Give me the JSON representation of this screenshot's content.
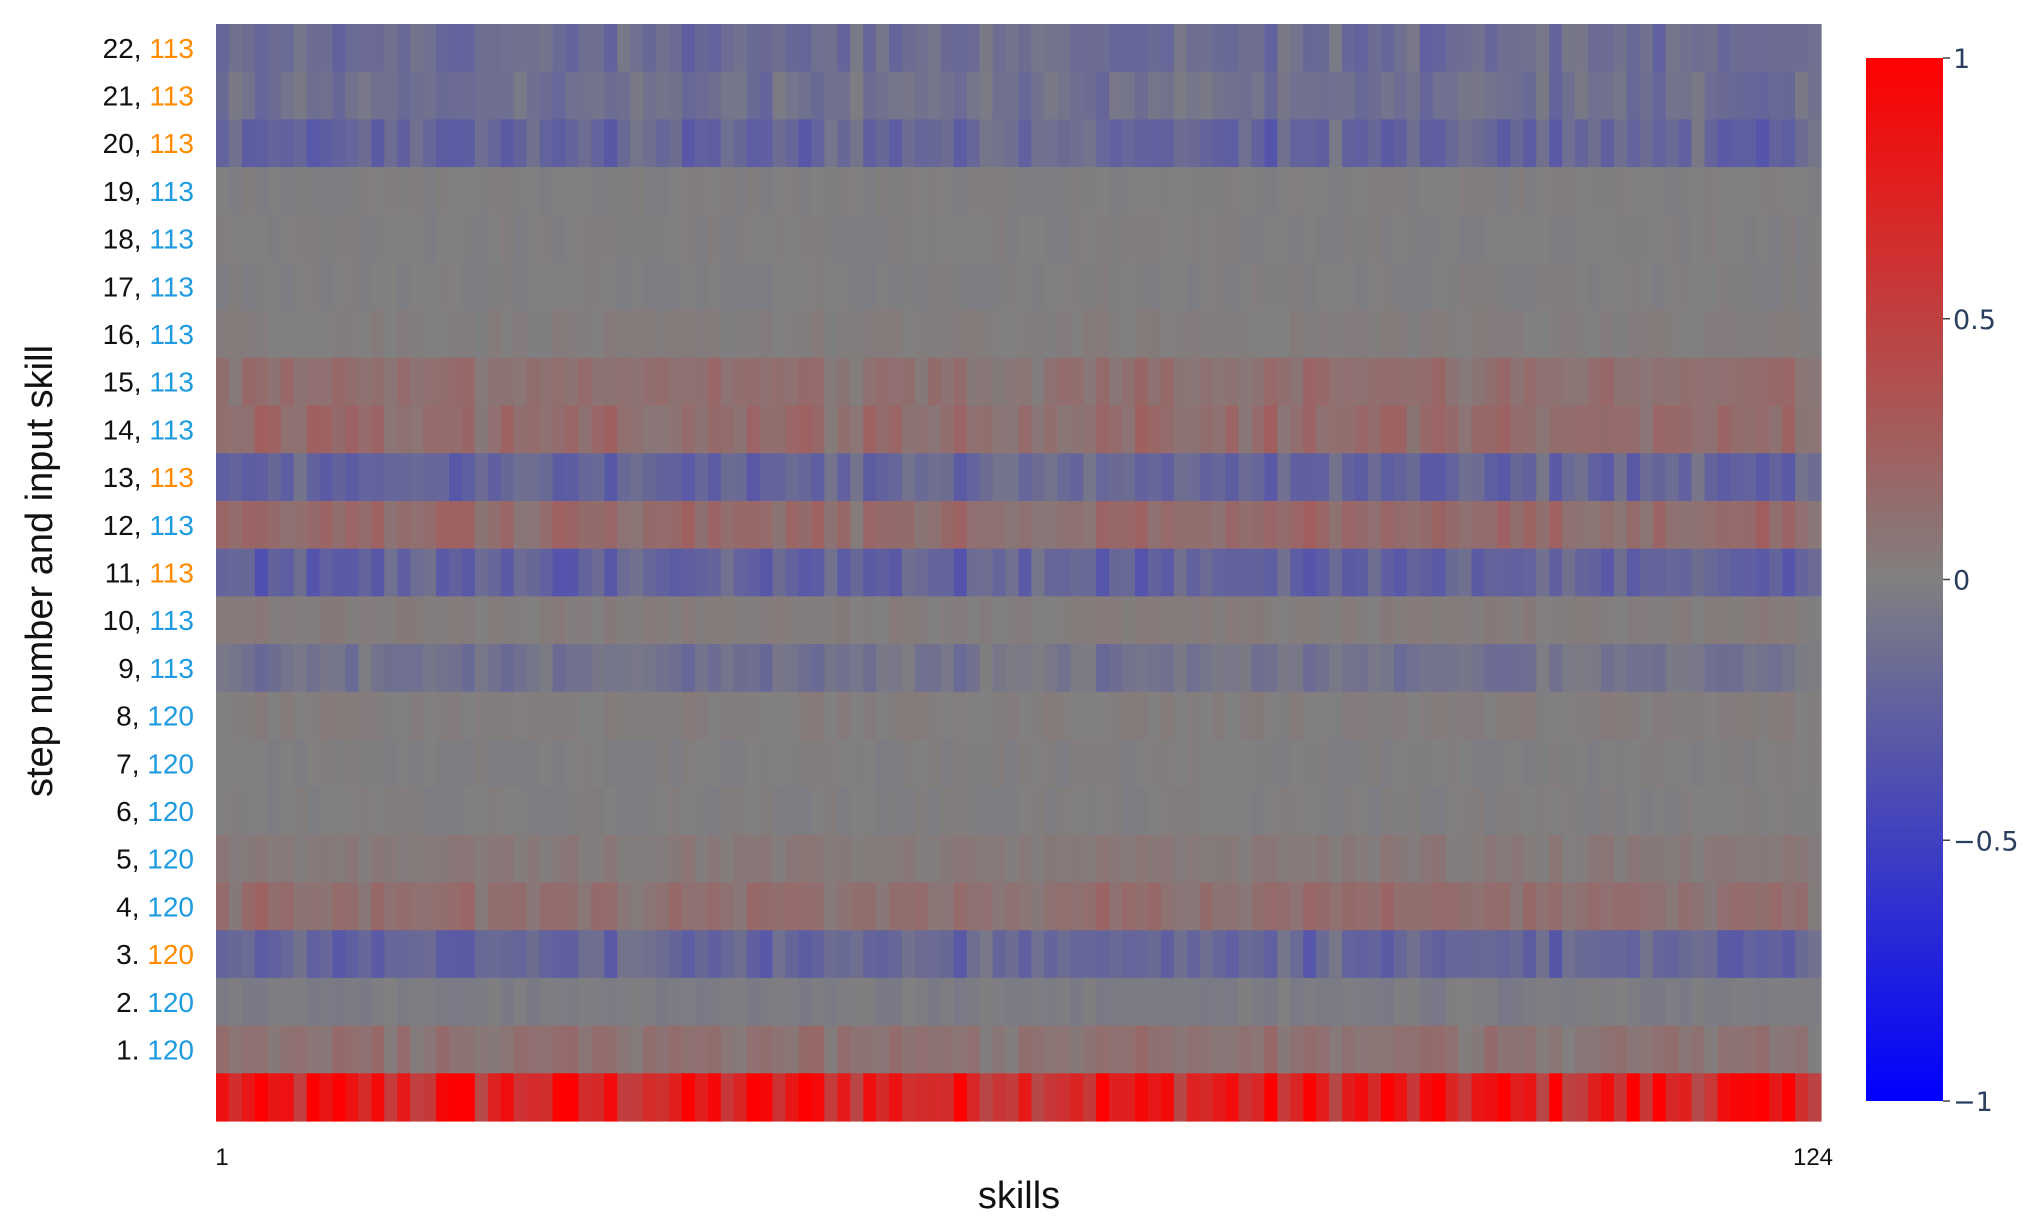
{
  "chart_data": {
    "type": "heatmap",
    "title": "",
    "xlabel": "skills",
    "ylabel": "step number and input skill",
    "x_range": [
      1,
      124
    ],
    "x_ticks": [
      "1",
      "124"
    ],
    "grid": false,
    "legend": "colorbar-right",
    "colorscale": {
      "min": -1,
      "max": 1,
      "colors": {
        "low": "#0000ff",
        "mid": "#808080",
        "high": "#ff0000"
      },
      "ticks": [
        "1",
        "0.5",
        "0",
        "−0.5",
        "−1"
      ],
      "tick_values": [
        1,
        0.5,
        0,
        -0.5,
        -1
      ]
    },
    "label_colors": {
      "correct": "#1f9be0",
      "incorrect": "#ff8c00",
      "step": "#111111"
    },
    "rows": [
      {
        "step": "22,",
        "skill": "113",
        "status": "incorrect",
        "mean": -0.15
      },
      {
        "step": "21,",
        "skill": "113",
        "status": "incorrect",
        "mean": -0.12
      },
      {
        "step": "20,",
        "skill": "113",
        "status": "incorrect",
        "mean": -0.2
      },
      {
        "step": "19,",
        "skill": "113",
        "status": "correct",
        "mean": 0.0
      },
      {
        "step": "18,",
        "skill": "113",
        "status": "correct",
        "mean": 0.0
      },
      {
        "step": "17,",
        "skill": "113",
        "status": "correct",
        "mean": 0.0
      },
      {
        "step": "16,",
        "skill": "113",
        "status": "correct",
        "mean": 0.02
      },
      {
        "step": "15,",
        "skill": "113",
        "status": "correct",
        "mean": 0.12
      },
      {
        "step": "14,",
        "skill": "113",
        "status": "correct",
        "mean": 0.15
      },
      {
        "step": "13,",
        "skill": "113",
        "status": "incorrect",
        "mean": -0.2
      },
      {
        "step": "12,",
        "skill": "113",
        "status": "correct",
        "mean": 0.15
      },
      {
        "step": "11,",
        "skill": "113",
        "status": "incorrect",
        "mean": -0.22
      },
      {
        "step": "10,",
        "skill": "113",
        "status": "correct",
        "mean": 0.03
      },
      {
        "step": "9,",
        "skill": "113",
        "status": "correct",
        "mean": -0.1
      },
      {
        "step": "8,",
        "skill": "120",
        "status": "correct",
        "mean": 0.02
      },
      {
        "step": "7,",
        "skill": "120",
        "status": "correct",
        "mean": 0.0
      },
      {
        "step": "6,",
        "skill": "120",
        "status": "correct",
        "mean": 0.0
      },
      {
        "step": "5,",
        "skill": "120",
        "status": "correct",
        "mean": 0.05
      },
      {
        "step": "4,",
        "skill": "120",
        "status": "correct",
        "mean": 0.12
      },
      {
        "step": "3.",
        "skill": "120",
        "status": "incorrect",
        "mean": -0.2
      },
      {
        "step": "2.",
        "skill": "120",
        "status": "correct",
        "mean": -0.03
      },
      {
        "step": "1.",
        "skill": "120",
        "status": "correct",
        "mean": 0.1
      },
      {
        "step": "",
        "skill": "",
        "status": "initial",
        "mean": 0.75
      }
    ]
  }
}
